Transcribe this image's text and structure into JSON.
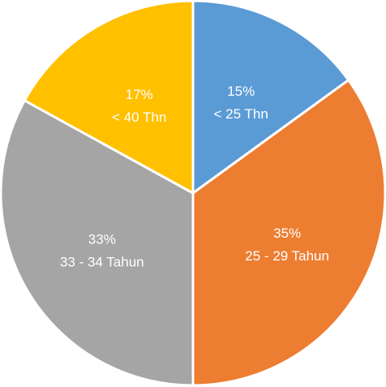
{
  "chart_data": {
    "type": "pie",
    "slices": [
      {
        "category": "< 25 Thn",
        "percent_label": "15%",
        "value": 15,
        "color": "#5b9bd5"
      },
      {
        "category": "25 - 29 Tahun",
        "percent_label": "35%",
        "value": 35,
        "color": "#ed7d31"
      },
      {
        "category": "33 - 34 Tahun",
        "percent_label": "33%",
        "value": 33,
        "color": "#a5a5a5"
      },
      {
        "category": "< 40 Thn",
        "percent_label": "17%",
        "value": 17,
        "color": "#ffc000"
      }
    ]
  }
}
